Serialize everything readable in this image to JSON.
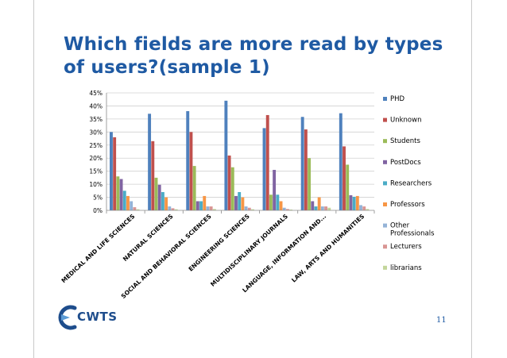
{
  "slide": {
    "title": "Which fields are more read by types of users?(sample 1)",
    "page_number": "11",
    "logo_text": "CWTS"
  },
  "chart_data": {
    "type": "bar",
    "title": "",
    "xlabel": "",
    "ylabel": "",
    "ylim": [
      0,
      45
    ],
    "y_ticks": [
      "0%",
      "5%",
      "10%",
      "15%",
      "20%",
      "25%",
      "30%",
      "35%",
      "40%",
      "45%"
    ],
    "grid": true,
    "legend_position": "right",
    "categories": [
      "MEDICAL AND LIFE SCIENCES",
      "NATURAL SCIENCES",
      "SOCIAL AND BEHAVIORAL SCIENCES",
      "ENGINEERING SCIENCES",
      "MULTIDISCIPLINARY JOURNALS",
      "LANGUAGE, INFORMATION AND...",
      "LAW, ARTS AND HUMANITIES"
    ],
    "series": [
      {
        "name": "PHD",
        "color": "#4f81bd",
        "values": [
          30,
          37,
          38,
          42,
          31.5,
          35.8,
          37.2
        ]
      },
      {
        "name": "Unknown",
        "color": "#c0504d",
        "values": [
          28,
          26.5,
          30,
          21,
          36.5,
          31,
          24.5
        ]
      },
      {
        "name": "Students",
        "color": "#9bbb59",
        "values": [
          13,
          12.5,
          17,
          16.5,
          6,
          20,
          17.5
        ]
      },
      {
        "name": "PostDocs",
        "color": "#8064a2",
        "values": [
          12,
          9.8,
          3.5,
          5.5,
          15.5,
          3.5,
          5.8
        ]
      },
      {
        "name": "Researchers",
        "color": "#4bacc6",
        "values": [
          7.5,
          7,
          3.5,
          7,
          6,
          1.5,
          5.2
        ]
      },
      {
        "name": "Professors",
        "color": "#f79646",
        "values": [
          5.5,
          5,
          5.5,
          5,
          3.5,
          5,
          5.5
        ]
      },
      {
        "name": "Other Professionals",
        "color": "#95b3d7",
        "values": [
          3.5,
          1.5,
          1.5,
          1.5,
          1,
          1.5,
          2
        ]
      },
      {
        "name": "Lecturers",
        "color": "#d99694",
        "values": [
          1.2,
          0.8,
          1.5,
          1,
          0.5,
          1.5,
          1.5
        ]
      },
      {
        "name": "librarians",
        "color": "#c3d69b",
        "values": [
          0.4,
          0.4,
          0.5,
          0.4,
          0.3,
          1,
          0.5
        ]
      }
    ]
  }
}
